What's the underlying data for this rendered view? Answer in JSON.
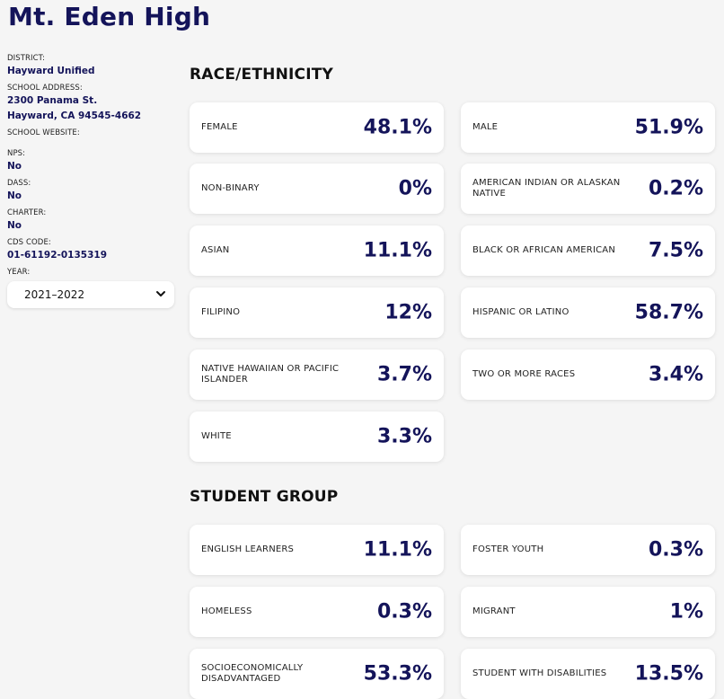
{
  "school": {
    "name": "Mt. Eden High"
  },
  "sidebar": {
    "district_label": "DISTRICT:",
    "district_value": "Hayward Unified",
    "address_label": "SCHOOL ADDRESS:",
    "address_line1": "2300 Panama St.",
    "address_line2": "Hayward, CA 94545-4662",
    "website_label": "SCHOOL WEBSITE:",
    "nps_label": "NPS:",
    "nps_value": "No",
    "dass_label": "DASS:",
    "dass_value": "No",
    "charter_label": "CHARTER:",
    "charter_value": "No",
    "cds_label": "CDS CODE:",
    "cds_value": "01-61192-0135319",
    "year_label": "YEAR:",
    "year_value": "2021–2022"
  },
  "race": {
    "title": "RACE/ETHNICITY",
    "cards": [
      {
        "label": "FEMALE",
        "value": "48.1%"
      },
      {
        "label": "MALE",
        "value": "51.9%"
      },
      {
        "label": "NON-BINARY",
        "value": "0%"
      },
      {
        "label": "AMERICAN INDIAN OR ALASKAN NATIVE",
        "value": "0.2%"
      },
      {
        "label": "ASIAN",
        "value": "11.1%"
      },
      {
        "label": "BLACK OR AFRICAN AMERICAN",
        "value": "7.5%"
      },
      {
        "label": "FILIPINO",
        "value": "12%"
      },
      {
        "label": "HISPANIC OR LATINO",
        "value": "58.7%"
      },
      {
        "label": "NATIVE HAWAIIAN OR PACIFIC ISLANDER",
        "value": "3.7%"
      },
      {
        "label": "TWO OR MORE RACES",
        "value": "3.4%"
      },
      {
        "label": "WHITE",
        "value": "3.3%"
      }
    ]
  },
  "group": {
    "title": "STUDENT GROUP",
    "cards": [
      {
        "label": "ENGLISH LEARNERS",
        "value": "11.1%"
      },
      {
        "label": "FOSTER YOUTH",
        "value": "0.3%"
      },
      {
        "label": "HOMELESS",
        "value": "0.3%"
      },
      {
        "label": "MIGRANT",
        "value": "1%"
      },
      {
        "label": "SOCIOECONOMICALLY DISADVANTAGED",
        "value": "53.3%"
      },
      {
        "label": "STUDENT WITH DISABILITIES",
        "value": "13.5%"
      }
    ]
  }
}
